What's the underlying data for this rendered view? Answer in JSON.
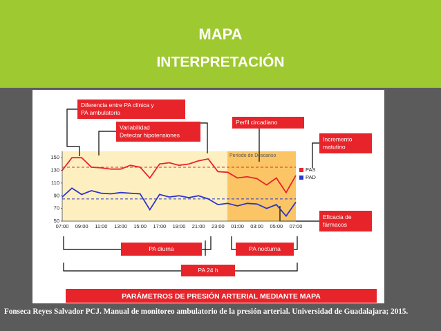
{
  "slide": {
    "title": "MAPA",
    "subtitle": "INTERPRETACIÓN",
    "footer_banner": "PARÁMETROS DE PRESIÓN ARTERIAL MEDIANTE MAPA",
    "citation": "Fonseca Reyes Salvador PCJ. Manual de monitoreo ambulatorio de la presión arterial. Universidad de Guadalajara; 2015."
  },
  "chart_data": {
    "type": "line",
    "categories": [
      "07:00",
      null,
      "09:00",
      null,
      "11:00",
      null,
      "13:00",
      null,
      "15:00",
      null,
      "17:00",
      null,
      "19:00",
      null,
      "21:00",
      null,
      "23:00",
      null,
      "01:00",
      null,
      "03:00",
      null,
      "05:00",
      null,
      "07:00"
    ],
    "series": [
      {
        "name": "PAS",
        "color": "#e8242b",
        "values": [
          130,
          150,
          150,
          135,
          134,
          132,
          132,
          138,
          135,
          118,
          140,
          142,
          138,
          140,
          145,
          148,
          128,
          127,
          118,
          120,
          117,
          107,
          118,
          95,
          122
        ]
      },
      {
        "name": "PAD",
        "color": "#2b35c8",
        "values": [
          88,
          102,
          92,
          98,
          94,
          93,
          95,
          94,
          93,
          68,
          92,
          88,
          90,
          87,
          90,
          85,
          76,
          78,
          74,
          78,
          77,
          70,
          76,
          58,
          80
        ]
      }
    ],
    "reference_lines": [
      {
        "value": 135,
        "color": "#e8242b"
      },
      {
        "value": 85,
        "color": "#2b35c8"
      }
    ],
    "ylim": [
      50,
      160
    ],
    "yticks": [
      50,
      70,
      90,
      110,
      130,
      150
    ],
    "rest_period_label": "Período de Descanso",
    "legend": "right",
    "annotations": [
      {
        "lines": [
          "Diferencia entre PA clínica y",
          "PA ambulatoria"
        ]
      },
      {
        "lines": [
          "Variabilidad",
          "Detectar hipotensiones"
        ]
      },
      {
        "lines": [
          "Perfil circadiano"
        ]
      },
      {
        "lines": [
          "Incremento",
          "matutino"
        ]
      },
      {
        "lines": [
          "Eficacia de",
          "fármacos"
        ]
      },
      {
        "lines": [
          "PA diurna"
        ]
      },
      {
        "lines": [
          "PA nocturna"
        ]
      },
      {
        "lines": [
          "PA 24 h"
        ]
      }
    ]
  }
}
